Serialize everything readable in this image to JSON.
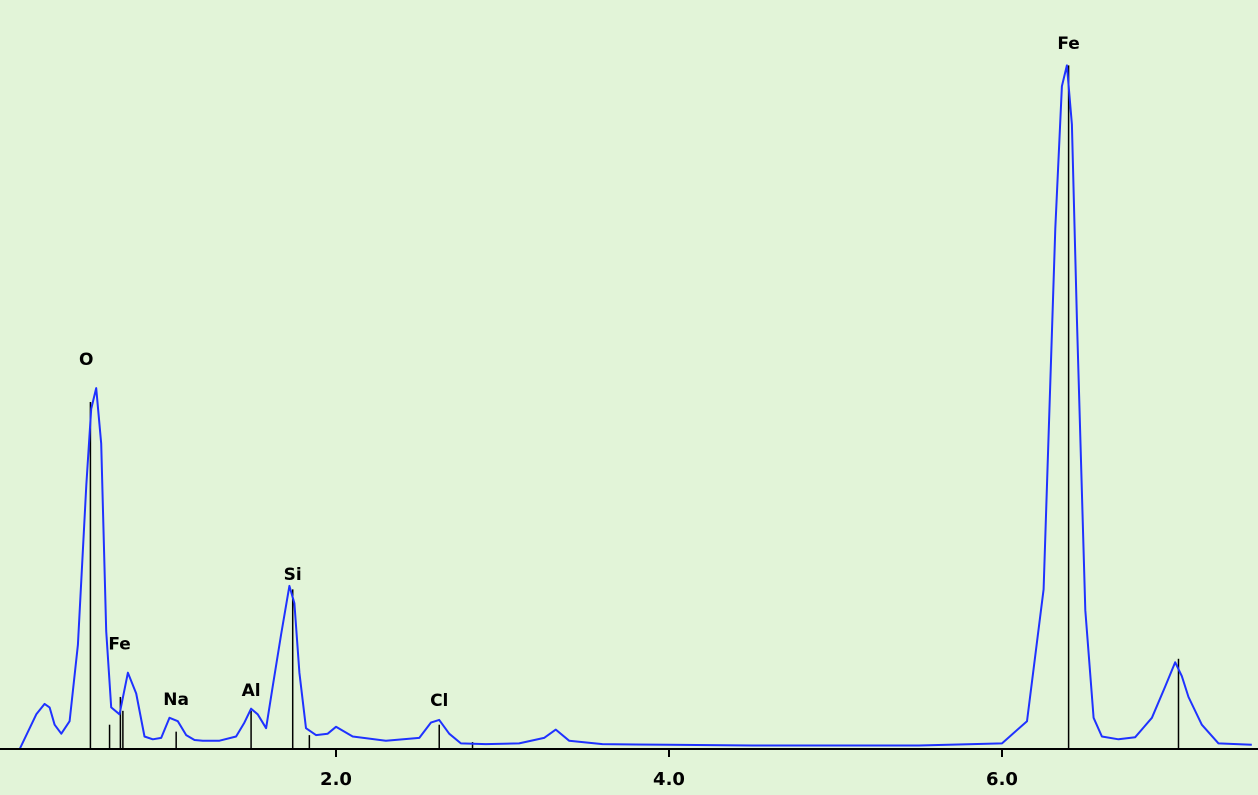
{
  "chart_data": {
    "type": "line",
    "title": "",
    "xlabel": "",
    "ylabel": "",
    "xlim": [
      0.0,
      7.5
    ],
    "ylim": [
      0,
      1.0
    ],
    "x_ticks": [
      "2.0",
      "4.0",
      "6.0"
    ],
    "grid": false,
    "legend": "none",
    "colors": {
      "background": "#e2f4d8",
      "spectrum": "#1f32ff",
      "markers": "#000000",
      "axis": "#000000"
    },
    "series": [
      {
        "x": [
          0.1,
          0.2,
          0.25,
          0.28,
          0.31,
          0.35,
          0.4,
          0.45,
          0.5,
          0.53,
          0.56,
          0.59,
          0.62,
          0.65,
          0.7,
          0.75,
          0.8,
          0.85,
          0.9,
          0.95,
          1.0,
          1.05,
          1.1,
          1.15,
          1.2,
          1.3,
          1.4,
          1.45,
          1.49,
          1.53,
          1.58,
          1.62,
          1.67,
          1.72,
          1.75,
          1.78,
          1.82,
          1.88,
          1.95,
          2.0,
          2.1,
          2.3,
          2.5,
          2.57,
          2.62,
          2.68,
          2.75,
          2.9,
          3.1,
          3.25,
          3.32,
          3.4,
          3.6,
          4.0,
          4.5,
          5.0,
          5.5,
          6.0,
          6.15,
          6.25,
          6.32,
          6.36,
          6.39,
          6.42,
          6.45,
          6.5,
          6.55,
          6.6,
          6.7,
          6.8,
          6.9,
          6.98,
          7.04,
          7.08,
          7.12,
          7.2,
          7.3,
          7.5
        ],
        "values": [
          0.0,
          0.05,
          0.065,
          0.06,
          0.035,
          0.022,
          0.04,
          0.15,
          0.38,
          0.49,
          0.52,
          0.44,
          0.17,
          0.06,
          0.05,
          0.11,
          0.08,
          0.018,
          0.014,
          0.016,
          0.045,
          0.04,
          0.02,
          0.013,
          0.012,
          0.012,
          0.018,
          0.038,
          0.058,
          0.05,
          0.03,
          0.09,
          0.165,
          0.235,
          0.21,
          0.11,
          0.03,
          0.02,
          0.022,
          0.032,
          0.018,
          0.012,
          0.016,
          0.038,
          0.042,
          0.022,
          0.008,
          0.007,
          0.008,
          0.016,
          0.028,
          0.012,
          0.007,
          0.006,
          0.005,
          0.005,
          0.005,
          0.008,
          0.04,
          0.23,
          0.75,
          0.955,
          0.985,
          0.9,
          0.62,
          0.2,
          0.045,
          0.018,
          0.014,
          0.017,
          0.045,
          0.09,
          0.125,
          0.105,
          0.075,
          0.035,
          0.008,
          0.006
        ]
      }
    ],
    "peak_markers": [
      {
        "x": 0.525,
        "height": 0.5
      },
      {
        "x": 0.64,
        "height": 0.035
      },
      {
        "x": 0.705,
        "height": 0.075
      },
      {
        "x": 0.72,
        "height": 0.055
      },
      {
        "x": 1.04,
        "height": 0.025
      },
      {
        "x": 1.49,
        "height": 0.055
      },
      {
        "x": 1.74,
        "height": 0.23
      },
      {
        "x": 1.84,
        "height": 0.02
      },
      {
        "x": 2.62,
        "height": 0.035
      },
      {
        "x": 2.82,
        "height": 0.01
      },
      {
        "x": 6.4,
        "height": 0.985
      },
      {
        "x": 7.06,
        "height": 0.13
      }
    ],
    "annotations": [
      {
        "text": "O",
        "x": 0.5,
        "y": 0.545
      },
      {
        "text": "Fe",
        "x": 0.7,
        "y": 0.135
      },
      {
        "text": "Na",
        "x": 1.04,
        "y": 0.055
      },
      {
        "text": "Al",
        "x": 1.49,
        "y": 0.068
      },
      {
        "text": "Si",
        "x": 1.74,
        "y": 0.235
      },
      {
        "text": "Cl",
        "x": 2.62,
        "y": 0.053
      },
      {
        "text": "Fe",
        "x": 6.4,
        "y": 1.0
      }
    ]
  }
}
